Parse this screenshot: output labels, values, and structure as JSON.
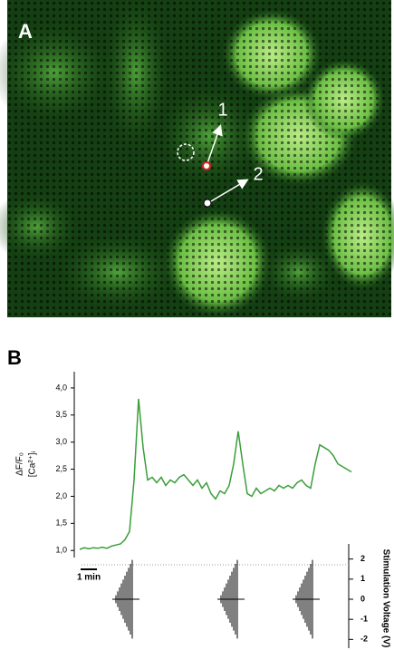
{
  "panel_a": {
    "label": "A",
    "markers": [
      "1",
      "2"
    ]
  },
  "chart_data": {
    "type": "line",
    "panel_label": "B",
    "y_label": [
      "ΔF/F₀",
      "[Ca²⁺]ᵢ"
    ],
    "series": [
      {
        "name": "ΔF/F₀",
        "color": "#3a9e3a",
        "values": [
          1.02,
          1.05,
          1.03,
          1.05,
          1.04,
          1.06,
          1.04,
          1.08,
          1.1,
          1.12,
          1.2,
          1.35,
          2.3,
          3.8,
          2.9,
          2.3,
          2.35,
          2.25,
          2.35,
          2.2,
          2.3,
          2.25,
          2.35,
          2.4,
          2.3,
          2.2,
          2.3,
          2.15,
          2.25,
          2.05,
          1.95,
          2.1,
          2.05,
          2.2,
          2.6,
          3.2,
          2.6,
          2.05,
          2.0,
          2.15,
          2.05,
          2.1,
          2.15,
          2.1,
          2.2,
          2.15,
          2.2,
          2.15,
          2.25,
          2.3,
          2.2,
          2.15,
          2.6,
          2.95,
          2.9,
          2.85,
          2.75,
          2.6,
          2.55,
          2.5,
          2.45
        ]
      }
    ],
    "ylim": [
      0.92,
      4.3
    ],
    "yticks": [
      {
        "value": 1.0,
        "label": "1,0"
      },
      {
        "value": 1.5,
        "label": "1,5"
      },
      {
        "value": 2.0,
        "label": "2,0"
      },
      {
        "value": 2.5,
        "label": "2,5"
      },
      {
        "value": 3.0,
        "label": "3,0"
      },
      {
        "value": 3.5,
        "label": "3,5"
      },
      {
        "value": 4.0,
        "label": "4,0"
      }
    ],
    "scale_bar_label": "1 min",
    "y2_label": "Stimulation Voltage (V)",
    "y2lim": [
      -2.3,
      2.3
    ],
    "y2ticks": [
      2,
      1,
      0,
      -1,
      -2
    ]
  }
}
